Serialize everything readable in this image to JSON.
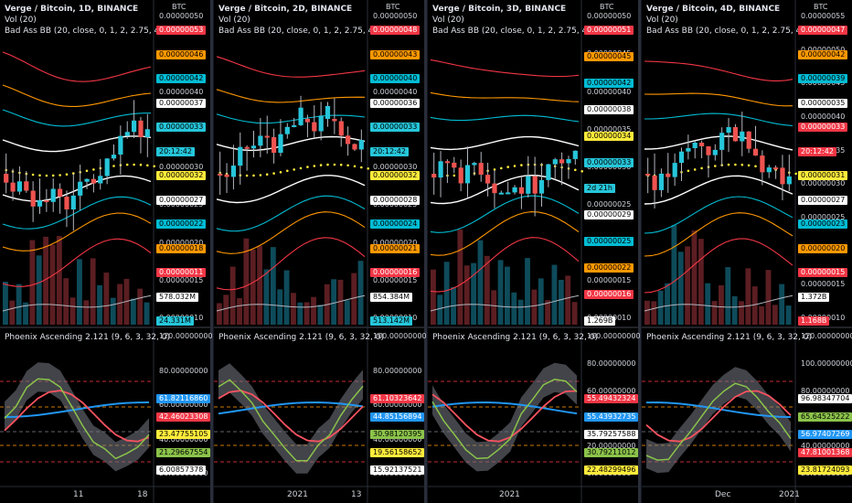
{
  "panels": [
    {
      "title": "Verge / Bitcoin, 1D, BINANCE",
      "vol": "Vol (20)",
      "bb": "Bad Ass BB (20, close, 0, 1, 2, 2.75, 4)",
      "osc": "Phoenix Ascending 2.121 (9, 6, 3, 32, 0)",
      "currency": "BTC",
      "scale_top": [
        "0.00000050",
        "0.00000045",
        "0.00000040",
        "0.00000035",
        "0.00000030",
        "0.00000025",
        "0.00000020",
        "0.00000015",
        "0.00000010"
      ],
      "badges_top": [
        {
          "text": "0.00000053",
          "bg": "#f23645",
          "fg": "#ffffff"
        },
        {
          "text": "0.00000046",
          "bg": "#ff9800",
          "fg": "#000000"
        },
        {
          "text": "0.00000042",
          "bg": "#00bcd4",
          "fg": "#000000"
        },
        {
          "text": "0.00000037",
          "bg": "#ffffff",
          "fg": "#000000"
        },
        {
          "text": "0.00000033",
          "bg": "#26c6da",
          "fg": "#000000"
        },
        {
          "text": "20:12:42",
          "bg": "#26c6da",
          "fg": "#000000"
        },
        {
          "text": "0.00000032",
          "bg": "#ffeb3b",
          "fg": "#000000"
        },
        {
          "text": "0.00000027",
          "bg": "#ffffff",
          "fg": "#000000"
        },
        {
          "text": "0.00000022",
          "bg": "#00bcd4",
          "fg": "#000000"
        },
        {
          "text": "0.00000018",
          "bg": "#ff9800",
          "fg": "#000000"
        },
        {
          "text": "0.00000011",
          "bg": "#f23645",
          "fg": "#ffffff"
        },
        {
          "text": "578.032M",
          "bg": "#ffffff",
          "fg": "#000000"
        },
        {
          "text": "24.331M",
          "bg": "#26c6da",
          "fg": "#000000"
        }
      ],
      "scale_bot": [
        "120.00000000",
        "80.00000000",
        "60.00000000",
        "40.00000000",
        "20.00000000"
      ],
      "badges_bot": [
        {
          "text": "61.82116860",
          "bg": "#2196f3",
          "fg": "#ffffff"
        },
        {
          "text": "42.46023308",
          "bg": "#f23645",
          "fg": "#ffffff"
        },
        {
          "text": "23.47755105",
          "bg": "#ffeb3b",
          "fg": "#000000"
        },
        {
          "text": "21.29667554",
          "bg": "#8bc34a",
          "fg": "#000000"
        },
        {
          "text": "6.00857378",
          "bg": "#ffffff",
          "fg": "#000000"
        }
      ],
      "xlabels": [
        "11",
        "18"
      ]
    },
    {
      "title": "Verge / Bitcoin, 2D, BINANCE",
      "vol": "Vol (20)",
      "bb": "Bad Ass BB (20, close, 0, 1, 2, 2.75, 4)",
      "osc": "Phoenix Ascending 2.121 (9, 6, 3, 32, 0)",
      "currency": "BTC",
      "scale_top": [
        "0.00000050",
        "0.00000045",
        "0.00000040",
        "0.00000035",
        "0.00000030",
        "0.00000025",
        "0.00000020",
        "0.00000015",
        "0.00000010"
      ],
      "badges_top": [
        {
          "text": "0.00000048",
          "bg": "#f23645",
          "fg": "#ffffff"
        },
        {
          "text": "0.00000043",
          "bg": "#ff9800",
          "fg": "#000000"
        },
        {
          "text": "0.00000040",
          "bg": "#00bcd4",
          "fg": "#000000"
        },
        {
          "text": "0.00000036",
          "bg": "#ffffff",
          "fg": "#000000"
        },
        {
          "text": "0.00000033",
          "bg": "#26c6da",
          "fg": "#000000"
        },
        {
          "text": "20:12:42",
          "bg": "#26c6da",
          "fg": "#000000"
        },
        {
          "text": "0.00000032",
          "bg": "#ffeb3b",
          "fg": "#000000"
        },
        {
          "text": "0.00000028",
          "bg": "#ffffff",
          "fg": "#000000"
        },
        {
          "text": "0.00000024",
          "bg": "#00bcd4",
          "fg": "#000000"
        },
        {
          "text": "0.00000021",
          "bg": "#ff9800",
          "fg": "#000000"
        },
        {
          "text": "0.00000016",
          "bg": "#f23645",
          "fg": "#ffffff"
        },
        {
          "text": "854.384M",
          "bg": "#ffffff",
          "fg": "#000000"
        },
        {
          "text": "513.142M",
          "bg": "#26c6da",
          "fg": "#000000"
        }
      ],
      "scale_bot": [
        "100.00000000",
        "80.00000000",
        "60.00000000",
        "40.00000000",
        "20.00000000"
      ],
      "badges_bot": [
        {
          "text": "61.10323642",
          "bg": "#f23645",
          "fg": "#ffffff"
        },
        {
          "text": "44.85156894",
          "bg": "#2196f3",
          "fg": "#ffffff"
        },
        {
          "text": "30.98120395",
          "bg": "#8bc34a",
          "fg": "#000000"
        },
        {
          "text": "19.56158652",
          "bg": "#ffeb3b",
          "fg": "#000000"
        },
        {
          "text": "15.92137521",
          "bg": "#ffffff",
          "fg": "#000000"
        }
      ],
      "xlabels": [
        "2021",
        "13"
      ]
    },
    {
      "title": "Verge / Bitcoin, 3D, BINANCE",
      "vol": "Vol (20)",
      "bb": "Bad Ass BB (20, close, 0, 1, 2, 2.75, 4)",
      "osc": "Phoenix Ascending 2.121 (9, 6, 3, 32, 0)",
      "currency": "BTC",
      "scale_top": [
        "0.00000050",
        "0.00000045",
        "0.00000040",
        "0.00000035",
        "0.00000030",
        "0.00000025",
        "0.00000020",
        "0.00000015",
        "0.00000010"
      ],
      "badges_top": [
        {
          "text": "0.00000051",
          "bg": "#f23645",
          "fg": "#ffffff"
        },
        {
          "text": "0.00000045",
          "bg": "#ff9800",
          "fg": "#000000"
        },
        {
          "text": "0.00000042",
          "bg": "#00bcd4",
          "fg": "#000000"
        },
        {
          "text": "0.00000038",
          "bg": "#ffffff",
          "fg": "#000000"
        },
        {
          "text": "0.00000034",
          "bg": "#ffeb3b",
          "fg": "#000000"
        },
        {
          "text": "0.00000033",
          "bg": "#26c6da",
          "fg": "#000000"
        },
        {
          "text": "2d 21h",
          "bg": "#26c6da",
          "fg": "#000000"
        },
        {
          "text": "0.00000029",
          "bg": "#ffffff",
          "fg": "#000000"
        },
        {
          "text": "0.00000025",
          "bg": "#00bcd4",
          "fg": "#000000"
        },
        {
          "text": "0.00000022",
          "bg": "#ff9800",
          "fg": "#000000"
        },
        {
          "text": "0.00000016",
          "bg": "#f23645",
          "fg": "#ffffff"
        },
        {
          "text": "1.269B",
          "bg": "#ffffff",
          "fg": "#000000"
        }
      ],
      "scale_bot": [
        "100.00000000",
        "80.00000000",
        "60.00000000",
        "40.00000000",
        "20.00000000",
        "0.00000000"
      ],
      "badges_bot": [
        {
          "text": "55.49432324",
          "bg": "#f23645",
          "fg": "#ffffff"
        },
        {
          "text": "55.43932735",
          "bg": "#2196f3",
          "fg": "#ffffff"
        },
        {
          "text": "35.79257588",
          "bg": "#ffffff",
          "fg": "#000000"
        },
        {
          "text": "30.79211012",
          "bg": "#8bc34a",
          "fg": "#000000"
        },
        {
          "text": "22.48299496",
          "bg": "#ffeb3b",
          "fg": "#000000"
        }
      ],
      "xlabels": [
        "2021"
      ]
    },
    {
      "title": "Verge / Bitcoin, 4D, BINANCE",
      "vol": "Vol (20)",
      "bb": "Bad Ass BB (20, close, 0, 1, 2, 2.75, 4)",
      "osc": "Phoenix Ascending 2.121 (9, 6, 3, 32, 0)",
      "currency": "BTC",
      "scale_top": [
        "0.00000055",
        "0.00000050",
        "0.00000045",
        "0.00000040",
        "0.00000035",
        "0.00000030",
        "0.00000025",
        "0.00000020",
        "0.00000015",
        "0.00000010"
      ],
      "badges_top": [
        {
          "text": "0.00000047",
          "bg": "#f23645",
          "fg": "#ffffff"
        },
        {
          "text": "0.00000042",
          "bg": "#ff9800",
          "fg": "#000000"
        },
        {
          "text": "0.00000039",
          "bg": "#00bcd4",
          "fg": "#000000"
        },
        {
          "text": "0.00000035",
          "bg": "#ffffff",
          "fg": "#000000"
        },
        {
          "text": "0.00000033",
          "bg": "#f23645",
          "fg": "#ffffff"
        },
        {
          "text": "20:12:42",
          "bg": "#f23645",
          "fg": "#ffffff"
        },
        {
          "text": "0.00000031",
          "bg": "#ffeb3b",
          "fg": "#000000"
        },
        {
          "text": "0.00000027",
          "bg": "#ffffff",
          "fg": "#000000"
        },
        {
          "text": "0.00000023",
          "bg": "#00bcd4",
          "fg": "#000000"
        },
        {
          "text": "0.00000020",
          "bg": "#ff9800",
          "fg": "#000000"
        },
        {
          "text": "0.00000015",
          "bg": "#f23645",
          "fg": "#ffffff"
        },
        {
          "text": "1.372B",
          "bg": "#ffffff",
          "fg": "#000000"
        },
        {
          "text": "1.168B",
          "bg": "#f23645",
          "fg": "#ffffff"
        }
      ],
      "scale_bot": [
        "120.00000000",
        "100.00000000",
        "80.00000000",
        "60.00000000",
        "40.00000000",
        "20.00000000"
      ],
      "badges_bot": [
        {
          "text": "96.98347704",
          "bg": "#ffffff",
          "fg": "#000000"
        },
        {
          "text": "65.64525222",
          "bg": "#8bc34a",
          "fg": "#000000"
        },
        {
          "text": "56.97407269",
          "bg": "#2196f3",
          "fg": "#ffffff"
        },
        {
          "text": "47.81001368",
          "bg": "#f23645",
          "fg": "#ffffff"
        },
        {
          "text": "23.81724093",
          "bg": "#ffeb3b",
          "fg": "#000000"
        }
      ],
      "xlabels": [
        "Dec",
        "2021"
      ]
    }
  ]
}
